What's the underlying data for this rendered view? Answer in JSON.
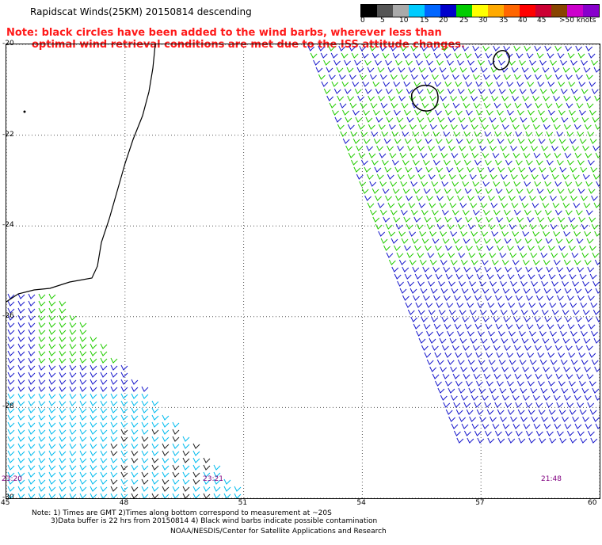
{
  "header": {
    "title": "Rapidscat Winds(25KM) 20150814 descending",
    "note_line1": "Note: black circles have been added to the wind barbs, wherever less than",
    "note_line2": "optimal wind retrieval conditions are met due to the ISS attitude changes."
  },
  "color_scale": {
    "colors": [
      "#000000",
      "#555555",
      "#aaaaaa",
      "#00ccff",
      "#0066ff",
      "#0000cc",
      "#00cc00",
      "#ffff00",
      "#ffaa00",
      "#ff6600",
      "#ff0000",
      "#cc0033",
      "#884400",
      "#cc00cc",
      "#8800cc"
    ],
    "labels": [
      "0",
      "5",
      "10",
      "15",
      "20",
      "25",
      "30",
      "35",
      "40",
      "45",
      ">50 knots"
    ]
  },
  "map": {
    "lat_labels": [
      "-20",
      "-22",
      "-24",
      "-26",
      "-28",
      "-30"
    ],
    "lon_labels": [
      "45",
      "48",
      "51",
      "54",
      "57",
      "60"
    ],
    "time_labels": [
      "23:20",
      "23:21",
      "21:48"
    ],
    "lat_range": [
      -30,
      -20
    ],
    "lon_range": [
      45,
      60
    ],
    "grid": true
  },
  "footer": {
    "line1": "Note: 1) Times are GMT 2)Times along bottom correspond to measurement at ~20S",
    "line2": "3)Data buffer is 22 hrs from 20150814 4) Black wind barbs indicate possible contamination",
    "line3": "NOAA/NESDIS/Center for Satellite Applications and Research"
  }
}
